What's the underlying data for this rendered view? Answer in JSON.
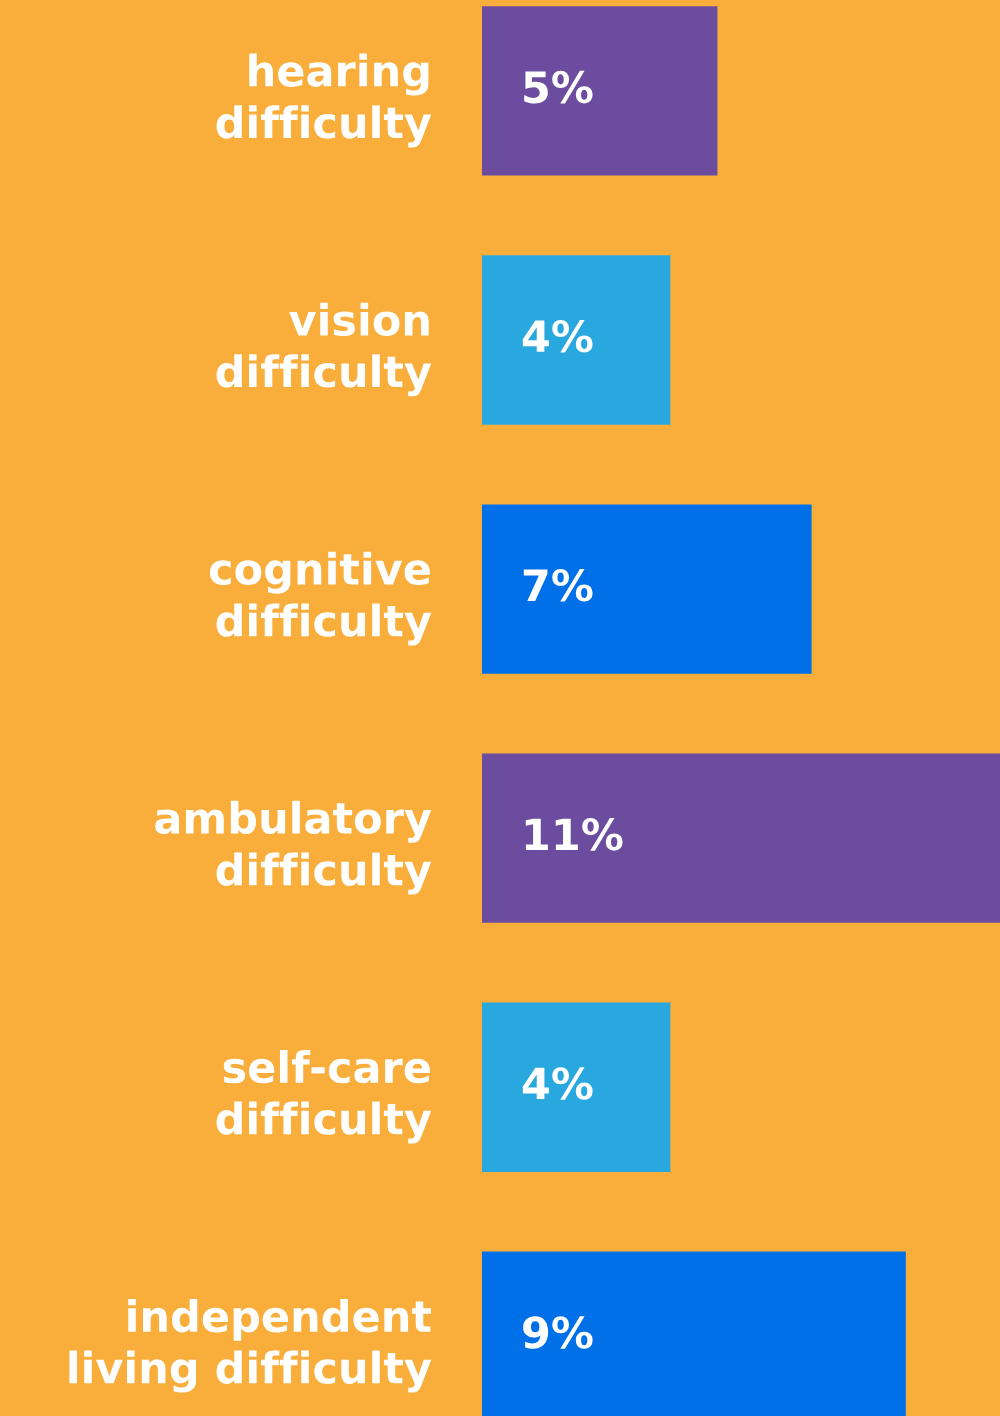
{
  "chart_data": {
    "type": "bar",
    "orientation": "horizontal",
    "categories": [
      "hearing difficulty",
      "vision difficulty",
      "cognitive difficulty",
      "ambulatory difficulty",
      "self-care difficulty",
      "independent living difficulty"
    ],
    "values": [
      5,
      4,
      7,
      11,
      4,
      9
    ],
    "value_labels": [
      "5%",
      "4%",
      "7%",
      "11%",
      "4%",
      "9%"
    ],
    "colors": [
      "#6b4c9f",
      "#29a8e0",
      "#0070e8",
      "#6b4c9f",
      "#29a8e0",
      "#0070e8"
    ],
    "grid": false,
    "legend": false
  }
}
